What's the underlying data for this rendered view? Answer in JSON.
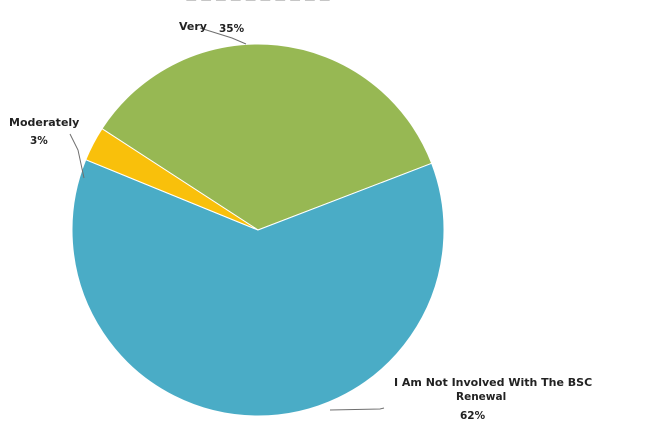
{
  "chart_data": {
    "type": "pie",
    "title": "",
    "slices": [
      {
        "label": "Very",
        "value": 35,
        "pct_label": "35%",
        "color": "#97B853"
      },
      {
        "label": "I Am Not Involved With The BSC Renewal",
        "label_line1": "I Am Not Involved With The BSC",
        "label_line2": "Renewal",
        "value": 62,
        "pct_label": "62%",
        "color": "#4AACC6"
      },
      {
        "label": "Moderately",
        "value": 3,
        "pct_label": "3%",
        "color": "#F9C00B"
      }
    ],
    "legend": "none",
    "data_labels": "outside with leader lines"
  }
}
